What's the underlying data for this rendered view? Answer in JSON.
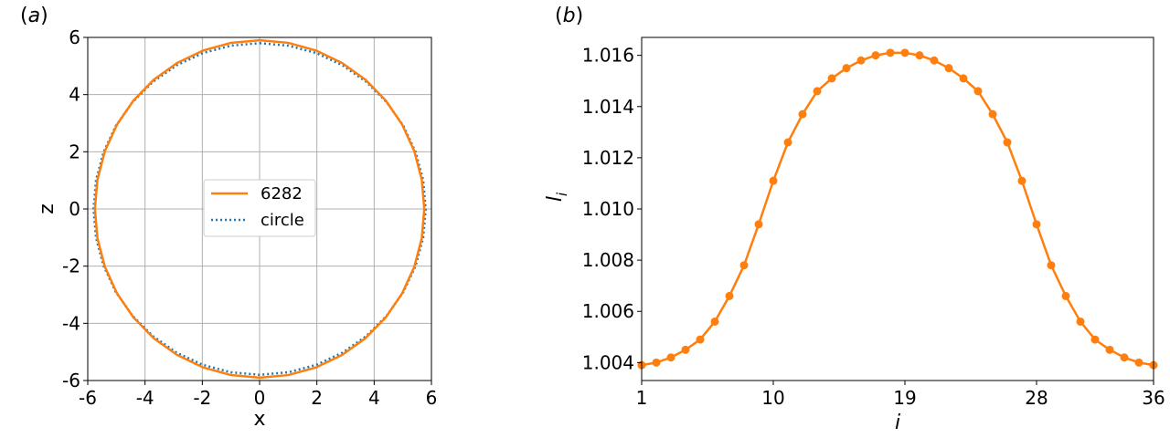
{
  "chart_data": [
    {
      "type": "line",
      "panel_label": "(a)",
      "xlabel": "x",
      "ylabel": "z",
      "xlim": [
        -6,
        6
      ],
      "ylim": [
        -6,
        6
      ],
      "xticks": [
        -6,
        -4,
        -2,
        0,
        2,
        4,
        6
      ],
      "yticks": [
        -6,
        -4,
        -2,
        0,
        2,
        4,
        6
      ],
      "xtick_labels": [
        "-6",
        "-4",
        "-2",
        "0",
        "2",
        "4",
        "6"
      ],
      "ytick_labels": [
        "-6",
        "-4",
        "-2",
        "0",
        "2",
        "4",
        "6"
      ],
      "grid": true,
      "legend_placement": "center",
      "series": [
        {
          "name": "6282",
          "color": "#ff7f0e",
          "style": "solid",
          "shape": "closed-curve",
          "x_semi_axis": 5.75,
          "z_semi_axis": 5.9,
          "vertices": 36
        },
        {
          "name": "circle",
          "color": "#1f77b4",
          "style": "dotted",
          "shape": "closed-curve",
          "radius": 5.8,
          "vertices": 36
        }
      ]
    },
    {
      "type": "line",
      "panel_label": "(b)",
      "xlabel": "i",
      "ylabel_main": "l",
      "ylabel_sub": "i",
      "xlim": [
        1,
        36
      ],
      "ylim": [
        1.0033,
        1.0167
      ],
      "xticks": [
        1,
        10,
        19,
        28,
        36
      ],
      "xtick_labels": [
        "1",
        "10",
        "19",
        "28",
        "36"
      ],
      "yticks": [
        1.004,
        1.006,
        1.008,
        1.01,
        1.012,
        1.014,
        1.016
      ],
      "ytick_labels": [
        "1.004",
        "1.006",
        "1.008",
        "1.010",
        "1.012",
        "1.014",
        "1.016"
      ],
      "grid": false,
      "series": [
        {
          "name": "",
          "color": "#ff7f0e",
          "marker": "circle",
          "x": [
            1,
            2,
            3,
            4,
            5,
            6,
            7,
            8,
            9,
            10,
            11,
            12,
            13,
            14,
            15,
            16,
            17,
            18,
            19,
            20,
            21,
            22,
            23,
            24,
            25,
            26,
            27,
            28,
            29,
            30,
            31,
            32,
            33,
            34,
            35,
            36
          ],
          "y": [
            1.0039,
            1.004,
            1.0042,
            1.0045,
            1.0049,
            1.0056,
            1.0066,
            1.0078,
            1.0094,
            1.0111,
            1.0126,
            1.0137,
            1.0146,
            1.0151,
            1.0155,
            1.0158,
            1.016,
            1.0161,
            1.0161,
            1.016,
            1.0158,
            1.0155,
            1.0151,
            1.0146,
            1.0137,
            1.0126,
            1.0111,
            1.0094,
            1.0078,
            1.0066,
            1.0056,
            1.0049,
            1.0045,
            1.0042,
            1.004,
            1.0039
          ]
        }
      ]
    }
  ]
}
